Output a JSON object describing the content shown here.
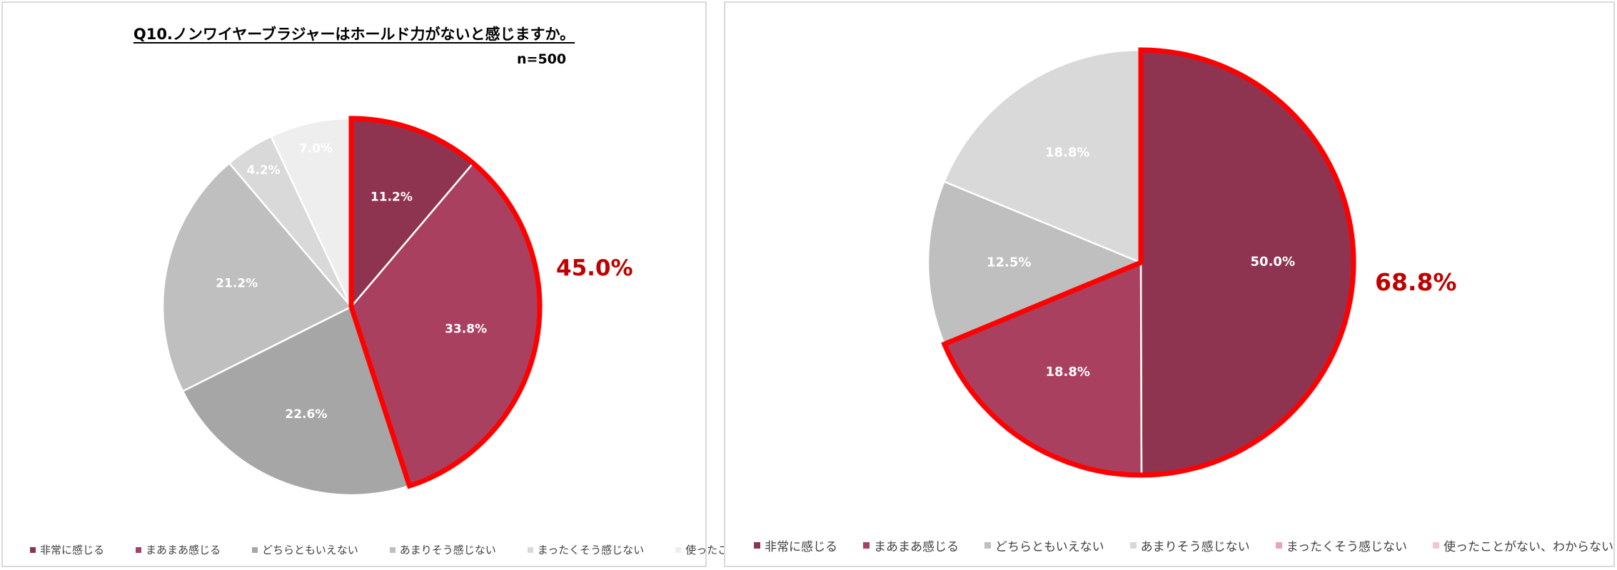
{
  "chart_data": [
    {
      "type": "pie",
      "title": "Q10.ノンワイヤーブラジャーはホールド力がないと感じますか。",
      "sample_size": "n=500",
      "categories": [
        "非常に感じる",
        "まあまあ感じる",
        "どちらともいえない",
        "あまりそう感じない",
        "まったくそう感じない",
        "使ったことがない、わからない"
      ],
      "values": [
        11.2,
        33.8,
        22.6,
        21.2,
        4.2,
        7.0
      ],
      "data_labels": [
        "11.2%",
        "33.8%",
        "22.6%",
        "21.2%",
        "4.2%",
        "7.0%"
      ],
      "colors": [
        "#8e3450",
        "#aa405f",
        "#a6a6a6",
        "#bfbfbf",
        "#d9d9d9",
        "#eeeeee"
      ],
      "label_colors": [
        "#ffffff",
        "#ffffff",
        "#ffffff",
        "#ffffff",
        "#ffffff",
        "#ffffff"
      ],
      "highlight": {
        "slices": [
          0,
          1
        ],
        "total_label": "45.0%",
        "outline_color": "#ff0000"
      },
      "legend_position": "bottom"
    },
    {
      "type": "pie",
      "title": "",
      "categories": [
        "非常に感じる",
        "まあまあ感じる",
        "どちらともいえない",
        "あまりそう感じない",
        "まったくそう感じない",
        "使ったことがない、わからない"
      ],
      "values": [
        50.0,
        18.8,
        12.5,
        18.8,
        0,
        0
      ],
      "data_labels": [
        "50.0%",
        "18.8%",
        "12.5%",
        "18.8%",
        "",
        ""
      ],
      "colors": [
        "#8e3450",
        "#aa405f",
        "#bfbfbf",
        "#d9d9d9",
        "#e8a5b6",
        "#f2c6d1"
      ],
      "label_colors": [
        "#ffffff",
        "#ffffff",
        "#ffffff",
        "#ffffff",
        "#ffffff",
        "#ffffff"
      ],
      "highlight": {
        "slices": [
          0,
          1
        ],
        "total_label": "68.8%",
        "outline_color": "#ff0000"
      },
      "legend_position": "bottom"
    }
  ]
}
